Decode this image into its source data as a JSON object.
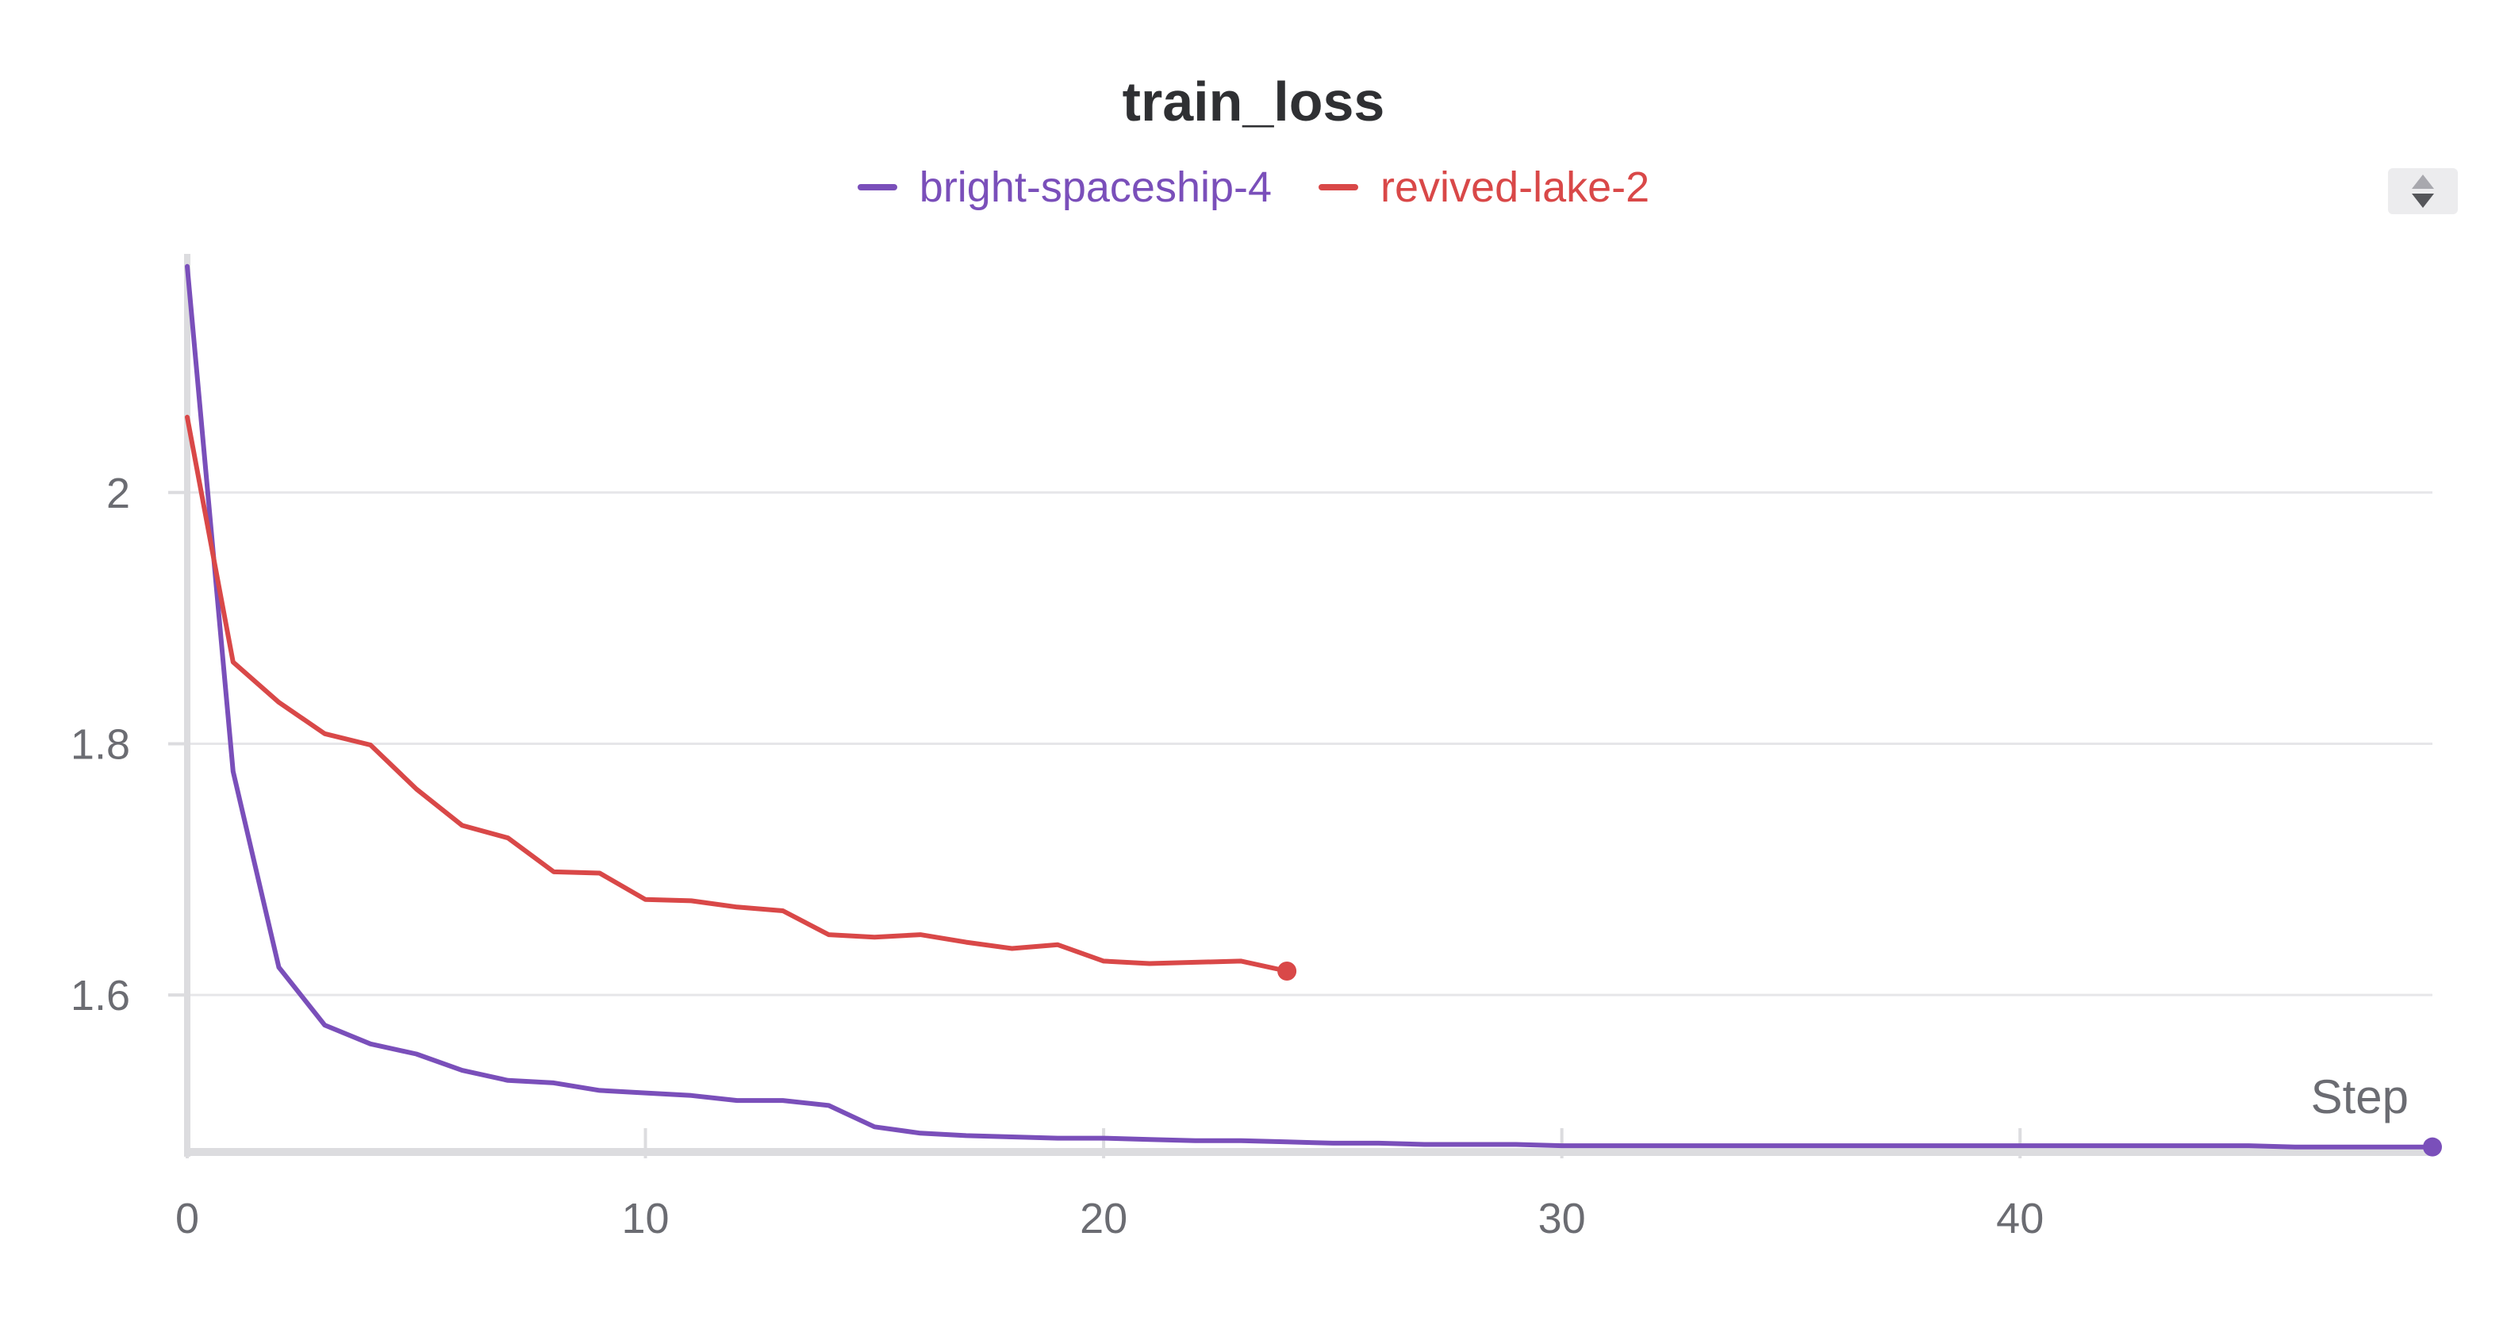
{
  "chart_data": {
    "type": "line",
    "title": "train_loss",
    "xlabel": "Step",
    "ylabel": "",
    "xlim": [
      0,
      49
    ],
    "ylim": [
      1.475,
      2.19
    ],
    "xticks": [
      0,
      10,
      20,
      30,
      40
    ],
    "xtick_labels": [
      "0",
      "10",
      "20",
      "30",
      "40"
    ],
    "yticks": [
      1.6,
      1.8,
      2.0
    ],
    "ytick_labels": [
      "1.6",
      "1.8",
      "2"
    ],
    "grid": true,
    "legend_position": "top-center",
    "series": [
      {
        "name": "bright-spaceship-4",
        "color": "#7a4fba",
        "x": [
          0,
          1,
          2,
          3,
          4,
          5,
          6,
          7,
          8,
          9,
          10,
          11,
          12,
          13,
          14,
          15,
          16,
          17,
          18,
          19,
          20,
          21,
          22,
          23,
          24,
          25,
          26,
          27,
          28,
          29,
          30,
          31,
          32,
          33,
          34,
          35,
          36,
          37,
          38,
          39,
          40,
          41,
          42,
          43,
          44,
          45,
          46,
          47,
          48,
          49
        ],
        "y": [
          2.18,
          1.778,
          1.622,
          1.576,
          1.561,
          1.553,
          1.54,
          1.532,
          1.53,
          1.524,
          1.522,
          1.52,
          1.516,
          1.516,
          1.512,
          1.495,
          1.49,
          1.488,
          1.487,
          1.486,
          1.486,
          1.485,
          1.484,
          1.484,
          1.483,
          1.482,
          1.482,
          1.481,
          1.481,
          1.481,
          1.48,
          1.48,
          1.48,
          1.48,
          1.48,
          1.48,
          1.48,
          1.48,
          1.48,
          1.48,
          1.48,
          1.48,
          1.48,
          1.48,
          1.48,
          1.48,
          1.479,
          1.479,
          1.479,
          1.479
        ]
      },
      {
        "name": "revived-lake-2",
        "color": "#d94848",
        "x": [
          0,
          1,
          2,
          3,
          4,
          5,
          6,
          7,
          8,
          9,
          10,
          11,
          12,
          13,
          14,
          15,
          16,
          17,
          18,
          19,
          20,
          21,
          22,
          23,
          24
        ],
        "y": [
          2.06,
          1.865,
          1.833,
          1.808,
          1.799,
          1.764,
          1.735,
          1.725,
          1.698,
          1.697,
          1.676,
          1.675,
          1.67,
          1.667,
          1.648,
          1.646,
          1.648,
          1.642,
          1.637,
          1.64,
          1.627,
          1.625,
          1.626,
          1.627,
          1.619
        ]
      }
    ]
  },
  "ui": {
    "scroll_control": "up-down-arrows-icon"
  }
}
